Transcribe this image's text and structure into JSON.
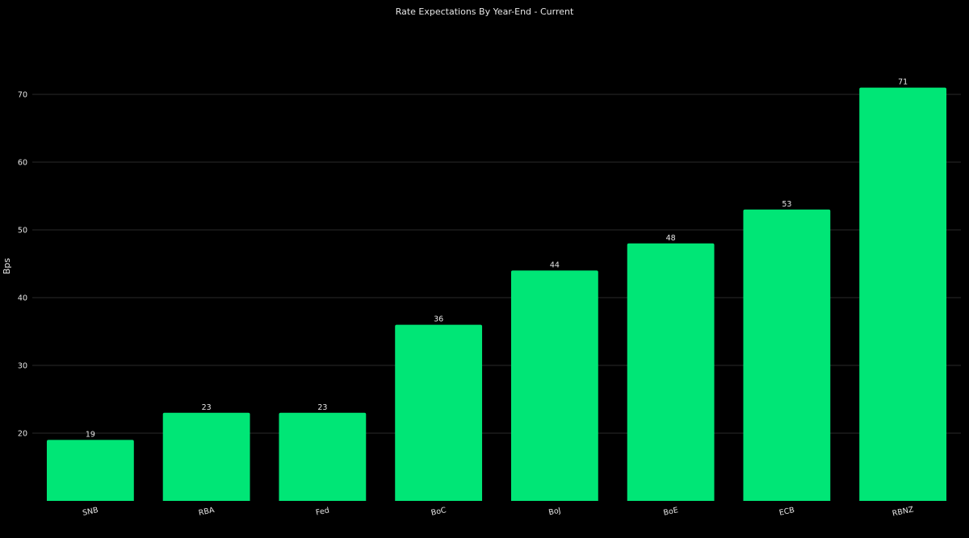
{
  "chart_data": {
    "type": "bar",
    "title": "Rate Expectations By Year-End - Current",
    "xlabel": "",
    "ylabel": "Bps",
    "categories": [
      "SNB",
      "RBA",
      "Fed",
      "BoC",
      "BoJ",
      "BoE",
      "ECB",
      "RBNZ"
    ],
    "values": [
      19,
      23,
      23,
      36,
      44,
      48,
      53,
      71
    ],
    "data_labels": [
      "19",
      "23",
      "23",
      "36",
      "44",
      "48",
      "53",
      "71"
    ],
    "ylim": [
      10,
      71.5
    ],
    "yticks": [
      20,
      30,
      40,
      50,
      60,
      70
    ],
    "grid": true,
    "bar_color": "#00e676",
    "background": "#000000"
  }
}
